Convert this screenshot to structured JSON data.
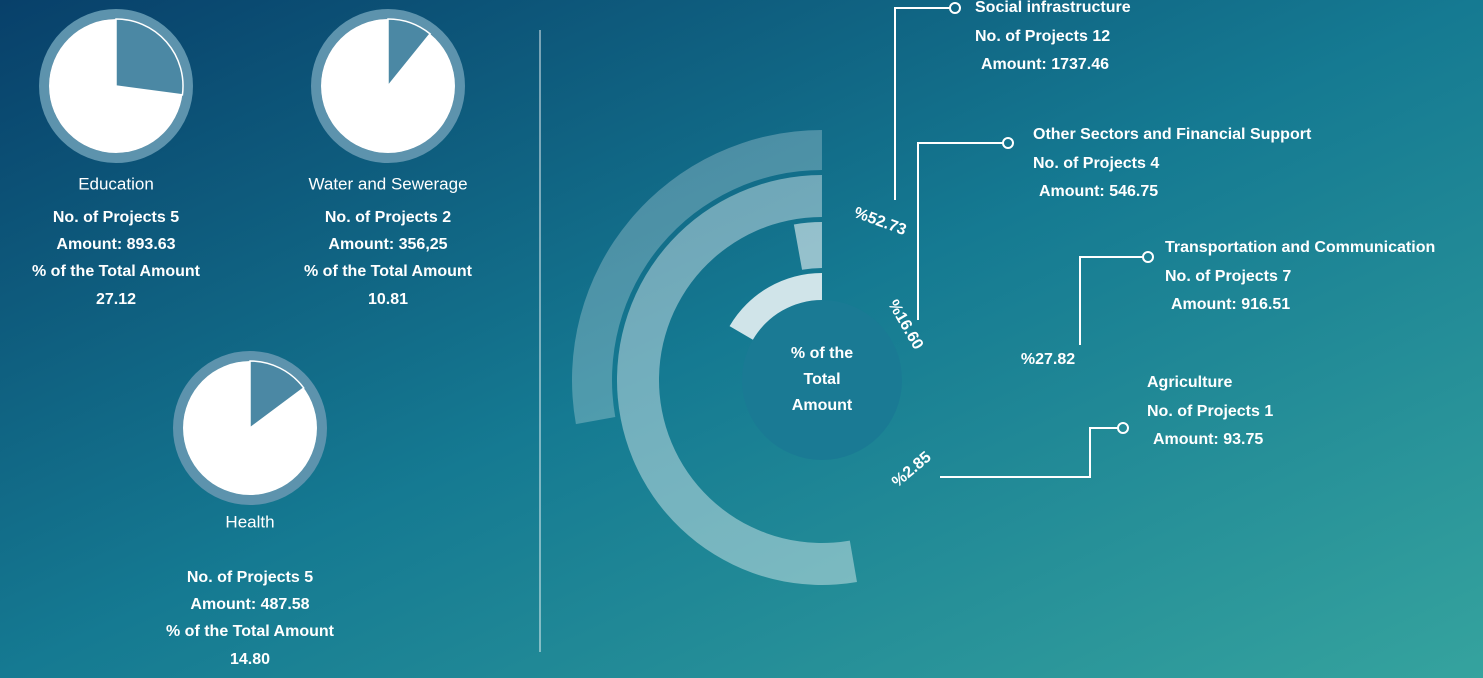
{
  "sectors": [
    {
      "name": "Education",
      "projects": "No. of Projects 5",
      "amount": "Amount: 893.63",
      "share_label": "% of the Total Amount",
      "share": 27.12
    },
    {
      "name": "Water and Sewerage",
      "projects": "No. of Projects 2",
      "amount": "Amount: 356,25",
      "share_label": "% of the Total Amount",
      "share": 10.81
    },
    {
      "name": "Health",
      "projects": "No. of Projects 5",
      "amount": "Amount: 487.58",
      "share_label": "% of the Total Amount",
      "share": {
        "value": 14.8,
        "label": "14.80"
      }
    }
  ],
  "ring": {
    "center": [
      "% of the",
      "Total",
      "Amount"
    ],
    "segments": [
      {
        "name": "Other Sectors and Financial Support",
        "projects": "No. of Projects 4",
        "amount": "Amount: 546.75",
        "percent": 16.6,
        "label": "%16.60"
      },
      {
        "name": "Agriculture",
        "projects": "No. of Projects 1",
        "amount": "Amount: 93.75",
        "percent": 2.85,
        "label": "%2.85"
      },
      {
        "name": "Social infrastructure",
        "projects": "No. of Projects 12",
        "amount": "Amount: 1737.46",
        "percent": 52.73,
        "label": "%52.73"
      },
      {
        "name": "Transportation and Communication",
        "projects": "No. of Projects 7",
        "amount": "Amount: 916.51",
        "percent": 27.82,
        "label": "%27.82"
      }
    ]
  }
}
